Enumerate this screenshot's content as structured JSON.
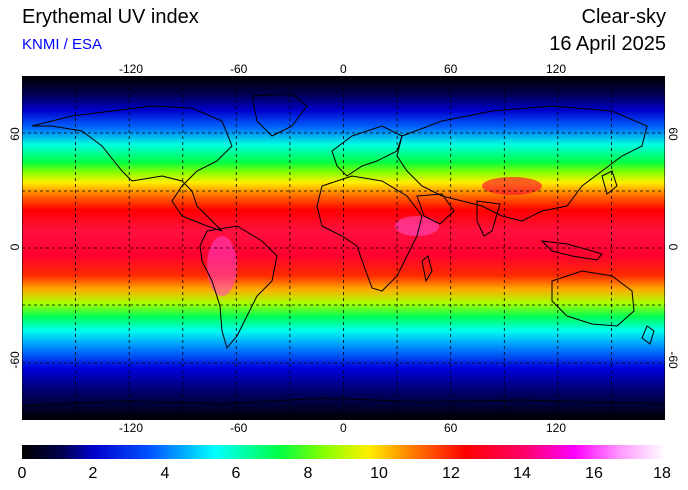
{
  "header": {
    "title": "Erythemal UV index",
    "credit": "KNMI / ESA",
    "mode": "Clear-sky",
    "date": "16 April 2025"
  },
  "map": {
    "lon_ticks": [
      "-120",
      "-60",
      "0",
      "60",
      "120"
    ],
    "lat_ticks": [
      "60",
      "0",
      "-60"
    ],
    "lon_range": [
      -180,
      180
    ],
    "lat_range": [
      -90,
      90
    ],
    "grid": true
  },
  "colorbar": {
    "ticks": [
      "0",
      "2",
      "4",
      "6",
      "8",
      "10",
      "12",
      "14",
      "16",
      "18"
    ],
    "range": [
      0,
      18
    ],
    "colors": [
      "#000000",
      "#0000aa",
      "#0000ff",
      "#00aaff",
      "#00ffff",
      "#00ff88",
      "#00ff00",
      "#aaff00",
      "#ffff00",
      "#ffaa00",
      "#ff5500",
      "#ff0000",
      "#ff0066",
      "#ff00ff",
      "#ff88ff",
      "#ffffff"
    ]
  },
  "colors": {
    "credit": "#0000ff",
    "background": "#ffffff"
  }
}
